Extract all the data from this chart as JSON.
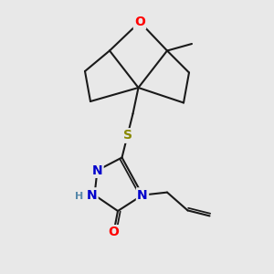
{
  "bg_color": "#e8e8e8",
  "bond_color": "#1a1a1a",
  "bond_width": 1.5,
  "atom_colors": {
    "O": "#ff0000",
    "N": "#0000cc",
    "S": "#888800",
    "H": "#5588aa"
  },
  "fs_large": 10,
  "fs_small": 8
}
